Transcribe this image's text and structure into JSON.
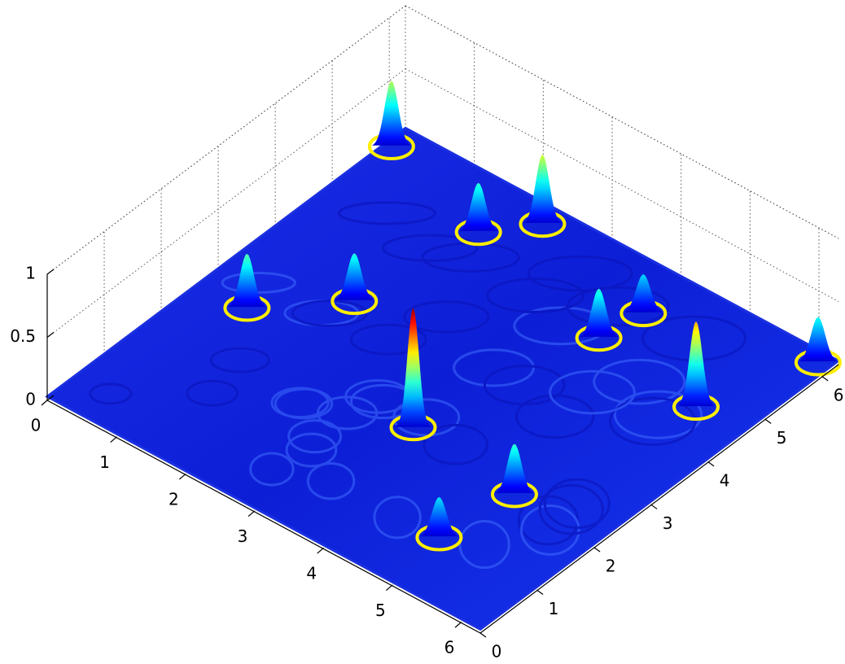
{
  "chart_data": {
    "type": "surface",
    "xlim": [
      0,
      6.2832
    ],
    "ylim": [
      0,
      6.2832
    ],
    "zlim": [
      0,
      1
    ],
    "xticks": [
      0,
      1,
      2,
      3,
      4,
      5,
      6
    ],
    "yticks": [
      0,
      1,
      2,
      3,
      4,
      5,
      6
    ],
    "zticks": [
      0,
      0.5,
      1
    ],
    "grid": true,
    "x": [
      0.09,
      1.79,
      2.24,
      0.69,
      1.52,
      3.44,
      4.0,
      4.1,
      5.6,
      6.13,
      5.05,
      4.9
    ],
    "y": [
      5.93,
      5.4,
      5.98,
      2.67,
      3.55,
      2.26,
      4.84,
      5.5,
      4.61,
      6.11,
      2.09,
      0.95
    ],
    "z": [
      0.55,
      0.42,
      0.58,
      0.46,
      0.41,
      0.98,
      0.42,
      0.34,
      0.71,
      0.39,
      0.43,
      0.35
    ]
  }
}
